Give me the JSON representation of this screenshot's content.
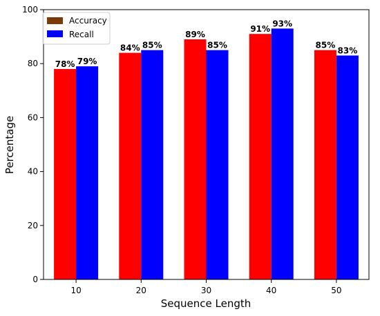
{
  "chart_data": {
    "type": "bar",
    "categories": [
      "10",
      "20",
      "30",
      "40",
      "50"
    ],
    "series": [
      {
        "name": "Accuracy",
        "values": [
          78,
          84,
          89,
          91,
          85
        ],
        "labels": [
          "78%",
          "84%",
          "89%",
          "91%",
          "85%"
        ],
        "color": "#ff0000",
        "legend_color": "#7b3a06"
      },
      {
        "name": "Recall",
        "values": [
          79,
          85,
          85,
          93,
          83
        ],
        "labels": [
          "79%",
          "85%",
          "85%",
          "93%",
          "83%"
        ],
        "color": "#0000ff",
        "legend_color": "#0000ff"
      }
    ],
    "xlabel": "Sequence Length",
    "ylabel": "Percentage",
    "ylim": [
      0,
      100
    ],
    "yticks": [
      "0",
      "20",
      "40",
      "60",
      "80",
      "100"
    ],
    "grid": false,
    "legend": "top-left"
  }
}
